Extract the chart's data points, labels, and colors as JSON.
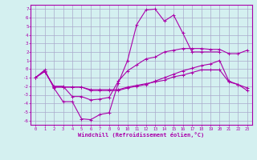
{
  "xlabel": "Windchill (Refroidissement éolien,°C)",
  "line_color": "#aa00aa",
  "bg_color": "#d4f0f0",
  "grid_color": "#aaaacc",
  "ylim": [
    -6.5,
    7.5
  ],
  "yticks": [
    -6,
    -5,
    -4,
    -3,
    -2,
    -1,
    0,
    1,
    2,
    3,
    4,
    5,
    6,
    7
  ],
  "xticks": [
    0,
    1,
    2,
    3,
    4,
    5,
    6,
    7,
    8,
    9,
    10,
    11,
    12,
    13,
    14,
    15,
    16,
    17,
    18,
    19,
    20,
    21,
    22,
    23
  ],
  "line1_x": [
    0,
    1,
    2,
    3,
    4,
    5,
    6,
    7,
    8,
    9,
    10,
    11,
    12,
    13,
    14,
    15,
    16,
    17,
    18,
    20
  ],
  "line1_y": [
    -1.0,
    -0.1,
    -2.2,
    -3.8,
    -3.8,
    -5.8,
    -5.9,
    -5.3,
    -5.1,
    -1.6,
    1.0,
    5.2,
    6.9,
    7.0,
    5.6,
    6.3,
    4.2,
    2.0,
    2.0,
    2.0
  ],
  "line2_x": [
    0,
    1,
    2,
    3,
    4,
    5,
    6,
    7,
    8,
    9,
    10,
    11,
    12,
    13,
    14,
    15,
    16,
    17,
    18,
    19,
    20,
    21,
    22,
    23
  ],
  "line2_y": [
    -1.0,
    -0.3,
    -2.0,
    -2.0,
    -3.2,
    -3.2,
    -3.6,
    -3.5,
    -3.3,
    -1.4,
    -0.2,
    0.5,
    1.2,
    1.4,
    2.0,
    2.2,
    2.4,
    2.4,
    2.4,
    2.3,
    2.3,
    1.8,
    1.8,
    2.2
  ],
  "line3_x": [
    0,
    1,
    2,
    3,
    4,
    5,
    6,
    7,
    8,
    9,
    10,
    11,
    12,
    13,
    14,
    15,
    16,
    17,
    18,
    19,
    20,
    21,
    22,
    23
  ],
  "line3_y": [
    -1.0,
    -0.2,
    -2.1,
    -2.1,
    -2.1,
    -2.1,
    -2.4,
    -2.4,
    -2.4,
    -2.4,
    -2.1,
    -1.9,
    -1.7,
    -1.5,
    -1.3,
    -0.9,
    -0.7,
    -0.4,
    -0.1,
    -0.1,
    -0.1,
    -1.5,
    -1.8,
    -2.2
  ],
  "line4_x": [
    0,
    1,
    2,
    3,
    4,
    5,
    6,
    7,
    8,
    9,
    10,
    11,
    12,
    13,
    14,
    15,
    16,
    17,
    18,
    19,
    20,
    21,
    22,
    23
  ],
  "line4_y": [
    -1.0,
    -0.2,
    -2.1,
    -2.1,
    -2.1,
    -2.1,
    -2.5,
    -2.5,
    -2.5,
    -2.5,
    -2.2,
    -2.0,
    -1.8,
    -1.4,
    -1.0,
    -0.6,
    -0.2,
    0.1,
    0.4,
    0.6,
    1.0,
    -1.4,
    -1.8,
    -2.5
  ]
}
